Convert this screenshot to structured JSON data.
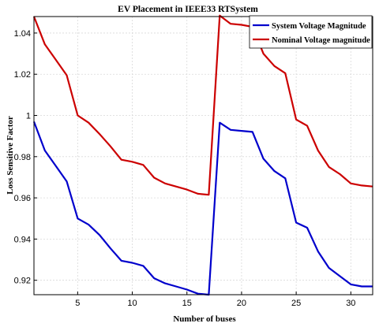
{
  "chart_data": {
    "type": "line",
    "title": "EV Placement in IEEE33 RTSystem",
    "xlabel": "Number of buses",
    "ylabel": "Loss Sensitive Factor",
    "xlim": [
      1,
      32
    ],
    "ylim": [
      0.913,
      1.048
    ],
    "xticks": [
      5,
      10,
      15,
      20,
      25,
      30
    ],
    "yticks": [
      0.92,
      0.94,
      0.96,
      0.98,
      1.0,
      1.02,
      1.04
    ],
    "ytick_labels": [
      "0.92",
      "0.94",
      "0.96",
      "0.98",
      "1",
      "1.02",
      "1.04"
    ],
    "grid": true,
    "legend_position": "top-right",
    "x": [
      1,
      2,
      3,
      4,
      5,
      6,
      7,
      8,
      9,
      10,
      11,
      12,
      13,
      14,
      15,
      16,
      17,
      18,
      19,
      20,
      21,
      22,
      23,
      24,
      25,
      26,
      27,
      28,
      29,
      30,
      31,
      32
    ],
    "series": [
      {
        "name": "System Voltage Magnitude",
        "color": "#0000cc",
        "values": [
          0.997,
          0.983,
          0.9755,
          0.968,
          0.95,
          0.947,
          0.942,
          0.9355,
          0.9295,
          0.9285,
          0.927,
          0.921,
          0.9185,
          0.917,
          0.9155,
          0.9135,
          0.913,
          0.9965,
          0.993,
          0.9925,
          0.992,
          0.979,
          0.973,
          0.9695,
          0.948,
          0.9455,
          0.934,
          0.926,
          0.922,
          0.918,
          0.917,
          0.917
        ]
      },
      {
        "name": "Nominal Voltage magnitude",
        "color": "#cc0000",
        "values": [
          1.048,
          1.0345,
          1.027,
          1.0195,
          1.0,
          0.9965,
          0.991,
          0.985,
          0.9785,
          0.9775,
          0.976,
          0.9698,
          0.967,
          0.9655,
          0.964,
          0.962,
          0.9615,
          1.0485,
          1.0445,
          1.044,
          1.043,
          1.03,
          1.024,
          1.0205,
          0.998,
          0.995,
          0.983,
          0.975,
          0.9715,
          0.967,
          0.966,
          0.9655
        ]
      }
    ]
  }
}
